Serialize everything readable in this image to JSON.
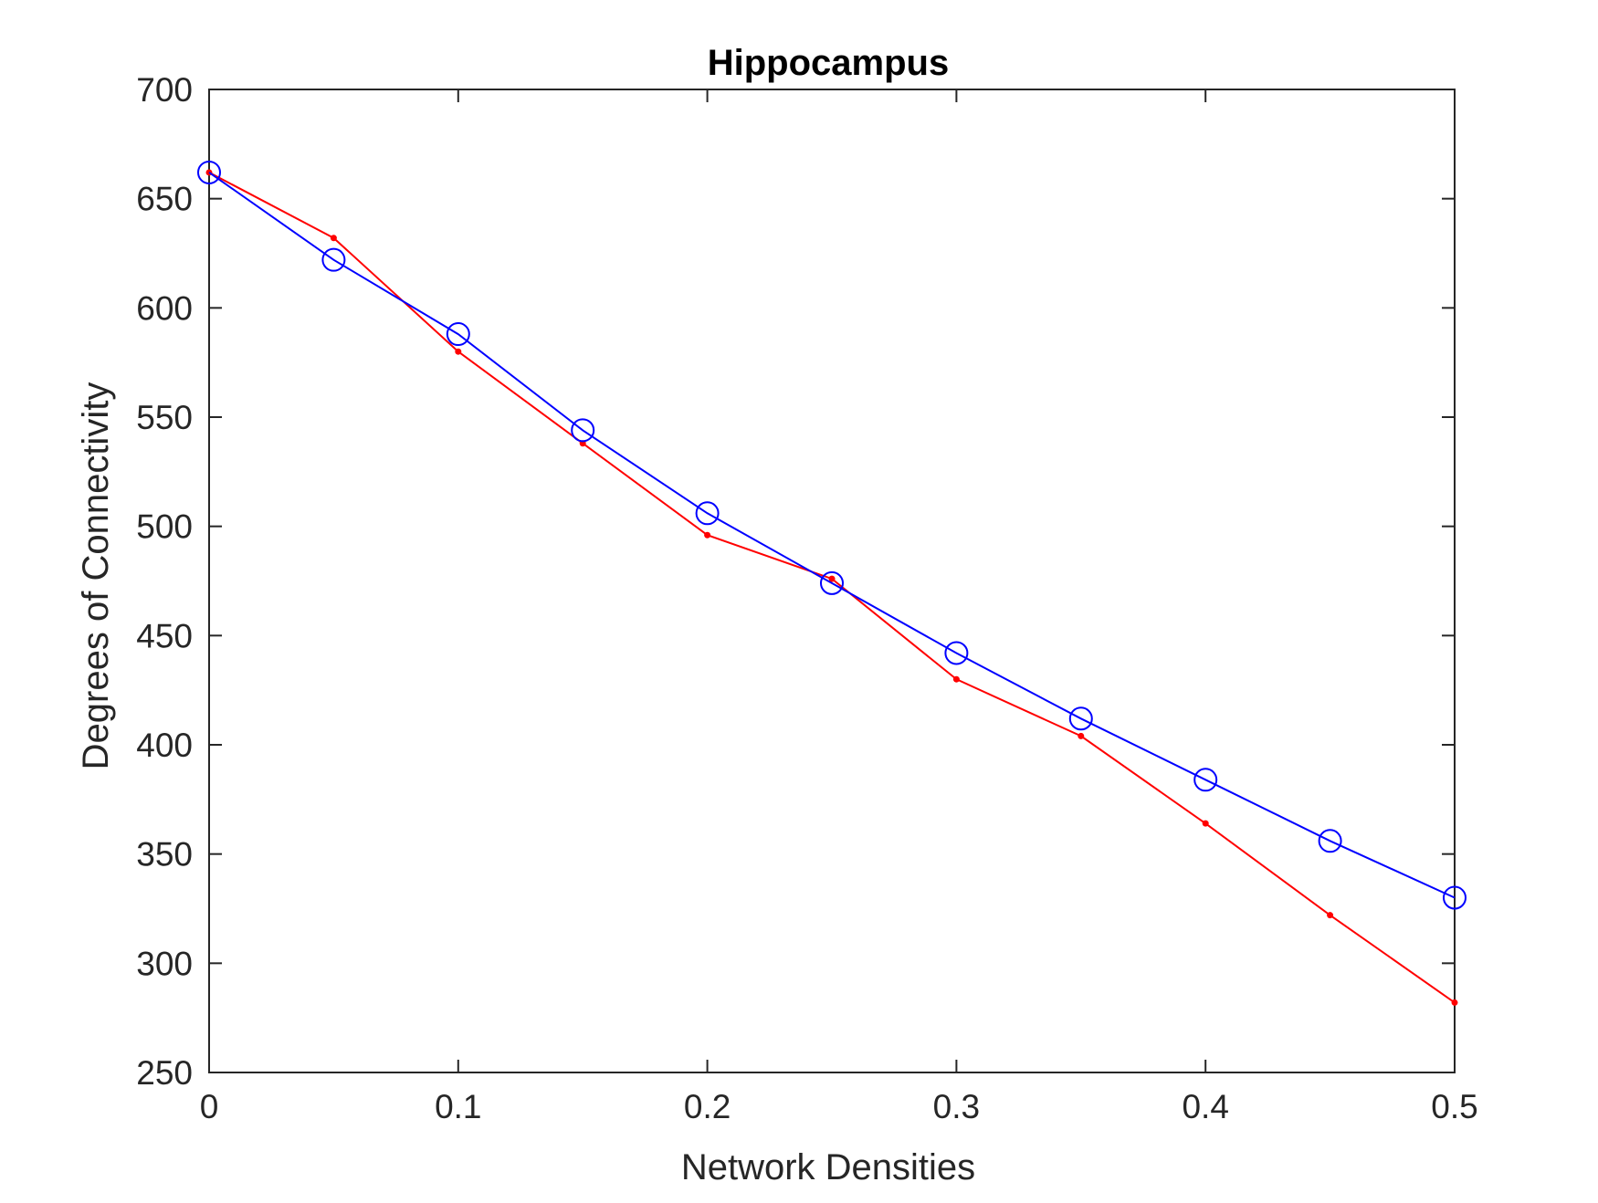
{
  "chart_data": {
    "type": "line",
    "title": "Hippocampus",
    "xlabel": "Network Densities",
    "ylabel": "Degrees of Connectivity",
    "xlim": [
      0,
      0.5
    ],
    "ylim": [
      250,
      700
    ],
    "xticks": [
      0,
      0.1,
      0.2,
      0.3,
      0.4,
      0.5
    ],
    "xtick_labels": [
      "0",
      "0.1",
      "0.2",
      "0.3",
      "0.4",
      "0.5"
    ],
    "yticks": [
      250,
      300,
      350,
      400,
      450,
      500,
      550,
      600,
      650,
      700
    ],
    "ytick_labels": [
      "250",
      "300",
      "350",
      "400",
      "450",
      "500",
      "550",
      "600",
      "650",
      "700"
    ],
    "grid": false,
    "x": [
      0,
      0.05,
      0.1,
      0.15,
      0.2,
      0.25,
      0.3,
      0.35,
      0.4,
      0.45,
      0.5
    ],
    "series": [
      {
        "color": "#ff0000",
        "marker": "dot",
        "values": [
          662,
          632,
          580,
          538,
          496,
          476,
          430,
          404,
          364,
          322,
          282
        ]
      },
      {
        "color": "#0000ff",
        "marker": "circle",
        "values": [
          662,
          622,
          588,
          544,
          506,
          474,
          442,
          412,
          384,
          356,
          330
        ]
      }
    ]
  }
}
